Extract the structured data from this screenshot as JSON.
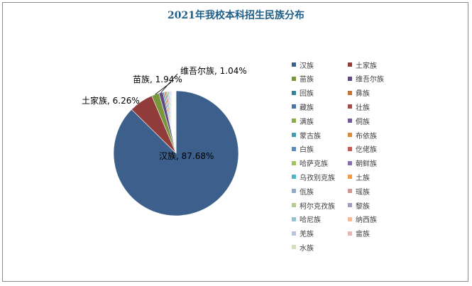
{
  "chart_data": {
    "type": "pie",
    "title": "2021年我校本科招生民族分布",
    "legend_placement": "right",
    "slices": [
      {
        "name": "汉族",
        "value": 87.68,
        "label": "汉族, 87.68%",
        "color": "#3c5f8c"
      },
      {
        "name": "土家族",
        "value": 6.26,
        "label": "土家族, 6.26%",
        "color": "#913c3a"
      },
      {
        "name": "苗族",
        "value": 1.94,
        "label": "苗族, 1.94%",
        "color": "#78963c"
      },
      {
        "name": "维吾尔族",
        "value": 1.04,
        "label": "维吾尔族, 1.04%",
        "color": "#5f4b82"
      },
      {
        "name": "回族",
        "value": 0.3,
        "label": "",
        "color": "#358495"
      },
      {
        "name": "彝族",
        "value": 0.28,
        "label": "",
        "color": "#c47430"
      },
      {
        "name": "藏族",
        "value": 0.26,
        "label": "",
        "color": "#4a73a8"
      },
      {
        "name": "壮族",
        "value": 0.24,
        "label": "",
        "color": "#a84a48"
      },
      {
        "name": "满族",
        "value": 0.22,
        "label": "",
        "color": "#8aab4c"
      },
      {
        "name": "侗族",
        "value": 0.2,
        "label": "",
        "color": "#725c9b"
      },
      {
        "name": "蒙古族",
        "value": 0.18,
        "label": "",
        "color": "#429db0"
      },
      {
        "name": "布依族",
        "value": 0.17,
        "label": "",
        "color": "#de8a3c"
      },
      {
        "name": "白族",
        "value": 0.16,
        "label": "",
        "color": "#5b89c2"
      },
      {
        "name": "仡佬族",
        "value": 0.15,
        "label": "",
        "color": "#c45c5a"
      },
      {
        "name": "哈萨克族",
        "value": 0.14,
        "label": "",
        "color": "#9fc45a"
      },
      {
        "name": "朝鲜族",
        "value": 0.13,
        "label": "",
        "color": "#8670b0"
      },
      {
        "name": "乌孜别克族",
        "value": 0.12,
        "label": "",
        "color": "#4fb4c8"
      },
      {
        "name": "土族",
        "value": 0.11,
        "label": "",
        "color": "#f59b48"
      },
      {
        "name": "佤族",
        "value": 0.1,
        "label": "",
        "color": "#94a9c9"
      },
      {
        "name": "瑶族",
        "value": 0.1,
        "label": "",
        "color": "#cf9796"
      },
      {
        "name": "柯尔克孜族",
        "value": 0.09,
        "label": "",
        "color": "#b4cc94"
      },
      {
        "name": "黎族",
        "value": 0.09,
        "label": "",
        "color": "#a69cbd"
      },
      {
        "name": "哈尼族",
        "value": 0.08,
        "label": "",
        "color": "#93c2d1"
      },
      {
        "name": "纳西族",
        "value": 0.08,
        "label": "",
        "color": "#f5bb93"
      },
      {
        "name": "羌族",
        "value": 0.07,
        "label": "",
        "color": "#b7c6de"
      },
      {
        "name": "畲族",
        "value": 0.07,
        "label": "",
        "color": "#e4b8b7"
      },
      {
        "name": "水族",
        "value": 0.06,
        "label": "",
        "color": "#d2e0bd"
      }
    ]
  }
}
